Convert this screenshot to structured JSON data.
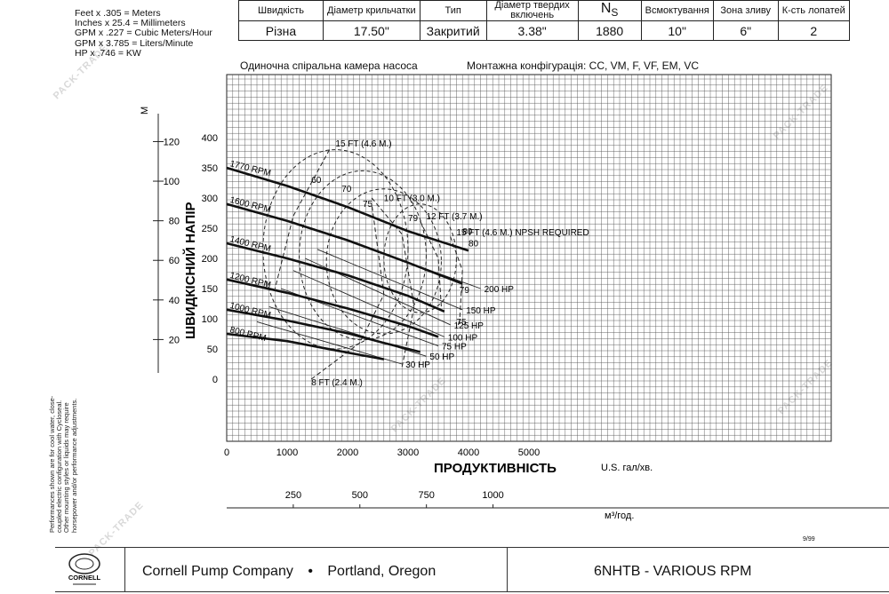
{
  "conversions": [
    "Feet x .305 = Meters",
    "Inches x 25.4 = Millimeters",
    "GPM x .227 = Cubic Meters/Hour",
    "GPM x 3.785 = Liters/Minute",
    "HP x .746 = KW"
  ],
  "spec_table": {
    "headers": [
      "Швидкість",
      "Діаметр крильчатки",
      "Тип",
      "Діаметр твердих включень",
      "N",
      "Всмоктування",
      "Зона зливу",
      "К-сть лопатей"
    ],
    "ns_subscript": "S",
    "values": [
      "Різна",
      "17.50\"",
      "Закритий",
      "3.38\"",
      "1880",
      "10\"",
      "6\"",
      "2"
    ]
  },
  "chart_header": {
    "left": "Одиночна спіральна камера насоса",
    "right": "Монтажна конфігурація:  CC, VM, F, VF, EM, VC"
  },
  "watermark": "PACK-TRADE",
  "date_code": "9/99",
  "disclaimer": "Performances shown are for cool water, close-coupled electric configuration with Cycloseal. Other mounting styles or liquids may require horsepower and/or performance adjustments.",
  "footer": {
    "company": "Cornell Pump Company",
    "bullet": "•",
    "city": "Portland, Oregon",
    "model": "6NHTB - VARIOUS RPM",
    "logo_text": "CORNELL"
  },
  "chart_data": {
    "type": "line",
    "xlabel": "ПРОДУКТИВНІСТЬ",
    "xunit": "U.S. гал/хв.",
    "ylabel": "ШВИДКІСНИЙ НАПІР",
    "x_ticks": [
      0,
      1000,
      2000,
      3000,
      4000,
      5000
    ],
    "y_ticks": [
      0,
      50,
      100,
      150,
      200,
      250,
      300,
      350,
      400
    ],
    "xlim": [
      0,
      10000
    ],
    "ylim": [
      -100,
      450
    ],
    "y2_label": "M",
    "y2_ticks": [
      20,
      40,
      60,
      80,
      100,
      120
    ],
    "x2_unit": "м³/год.",
    "x2_ticks": [
      250,
      500,
      750,
      1000
    ],
    "grid": true,
    "series": [
      {
        "name": "1770 RPM",
        "x": [
          0,
          1000,
          2000,
          3000,
          4000
        ],
        "y": [
          350,
          320,
          285,
          245,
          213
        ]
      },
      {
        "name": "1600 RPM",
        "x": [
          0,
          1000,
          2000,
          3000,
          3900
        ],
        "y": [
          290,
          262,
          230,
          193,
          158
        ]
      },
      {
        "name": "1400 RPM",
        "x": [
          0,
          1000,
          2000,
          3000,
          3600
        ],
        "y": [
          225,
          200,
          172,
          138,
          112
        ]
      },
      {
        "name": "1200 RPM",
        "x": [
          0,
          1000,
          2000,
          3000,
          3500
        ],
        "y": [
          165,
          143,
          117,
          88,
          70
        ]
      },
      {
        "name": "1000 RPM",
        "x": [
          0,
          1000,
          2000,
          2600,
          3200
        ],
        "y": [
          115,
          97,
          76,
          60,
          45
        ]
      },
      {
        "name": "800 RPM",
        "x": [
          0,
          1000,
          2000,
          2600
        ],
        "y": [
          75,
          63,
          44,
          33
        ]
      }
    ],
    "hp_lines": [
      {
        "label": "200 HP",
        "value": 200,
        "x": [
          1700,
          4200
        ],
        "y": [
          240,
          150
        ]
      },
      {
        "label": "150 HP",
        "value": 150,
        "x": [
          1500,
          3900
        ],
        "y": [
          215,
          115
        ]
      },
      {
        "label": "125 HP",
        "value": 125,
        "x": [
          1300,
          3700
        ],
        "y": [
          200,
          90
        ]
      },
      {
        "label": "100 HP",
        "value": 100,
        "x": [
          1100,
          3600
        ],
        "y": [
          180,
          70
        ]
      },
      {
        "label": "75 HP",
        "value": 75,
        "x": [
          900,
          3500
        ],
        "y": [
          150,
          55
        ]
      },
      {
        "label": "50 HP",
        "value": 50,
        "x": [
          700,
          3300
        ],
        "y": [
          120,
          38
        ]
      },
      {
        "label": "30 HP",
        "value": 30,
        "x": [
          500,
          2900
        ],
        "y": [
          95,
          25
        ]
      }
    ],
    "efficiency_labels": [
      {
        "label": "60",
        "x": 1400,
        "y": 325
      },
      {
        "label": "70",
        "x": 1900,
        "y": 310
      },
      {
        "label": "75",
        "x": 2250,
        "y": 285
      },
      {
        "label": "79",
        "x": 3000,
        "y": 262
      },
      {
        "label": "80",
        "x": 3900,
        "y": 240
      },
      {
        "label": "80",
        "x": 4000,
        "y": 220
      },
      {
        "label": "79",
        "x": 3850,
        "y": 143
      },
      {
        "label": "75",
        "x": 3800,
        "y": 90
      }
    ],
    "npsh_labels": [
      {
        "label": "15 FT (4.6 M.)",
        "x": 1800,
        "y": 385
      },
      {
        "label": "10 FT (3.0 M.)",
        "x": 2600,
        "y": 295
      },
      {
        "label": "12 FT (3.7 M.)",
        "x": 3300,
        "y": 265
      },
      {
        "label": "15 FT (4.6 M.) NPSH REQUIRED",
        "x": 3800,
        "y": 238
      },
      {
        "label": "8 FT (2.4 M.)",
        "x": 1400,
        "y": -10
      }
    ]
  }
}
